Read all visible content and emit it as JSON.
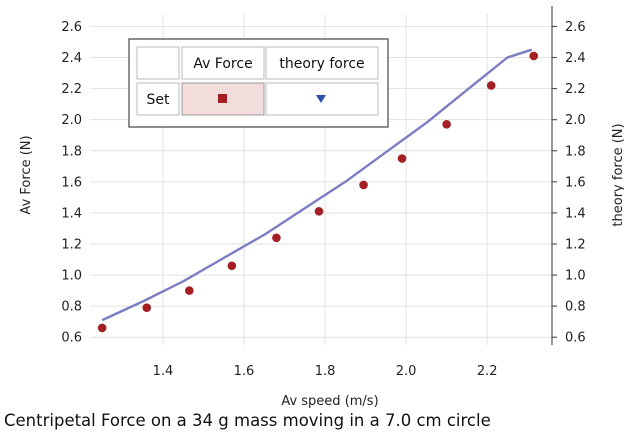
{
  "caption": "Centripetal Force on a 34 g mass moving in a 7.0 cm circle",
  "colors": {
    "measured": "#a31f24",
    "theory": "#7b7ec2",
    "legend_highlight": "#f3dcdc"
  },
  "legend": {
    "header_blank": "",
    "col1_header": "Av Force",
    "col2_header": "theory force",
    "row_label": "Set"
  },
  "chart_data": {
    "type": "scatter",
    "xlabel": "Av speed (m/s)",
    "ylabel": "Av Force (N)",
    "ylabel_right": "theory force (N)",
    "xlim": [
      1.22,
      2.36
    ],
    "ylim": [
      0.55,
      2.68
    ],
    "xticks": [
      "1.4",
      "1.6",
      "1.8",
      "2.0",
      "2.2"
    ],
    "yticks": [
      "0.6",
      "0.8",
      "1.0",
      "1.2",
      "1.4",
      "1.6",
      "1.8",
      "2.0",
      "2.2",
      "2.4",
      "2.6"
    ],
    "grid": true,
    "legend_position": "top-left",
    "series": [
      {
        "name": "Av Force",
        "marker": "circle",
        "x": [
          1.25,
          1.36,
          1.465,
          1.57,
          1.68,
          1.785,
          1.895,
          1.99,
          2.1,
          2.21,
          2.315
        ],
        "y": [
          0.66,
          0.79,
          0.9,
          1.06,
          1.24,
          1.41,
          1.58,
          1.75,
          1.97,
          2.22,
          2.41
        ]
      },
      {
        "name": "theory force",
        "marker": "triangle-down",
        "x": [
          1.25,
          1.35,
          1.45,
          1.55,
          1.65,
          1.75,
          1.85,
          1.95,
          2.05,
          2.15,
          2.25,
          2.31
        ],
        "y": [
          0.71,
          0.83,
          0.96,
          1.11,
          1.26,
          1.43,
          1.6,
          1.79,
          1.98,
          2.19,
          2.4,
          2.45
        ]
      }
    ]
  }
}
